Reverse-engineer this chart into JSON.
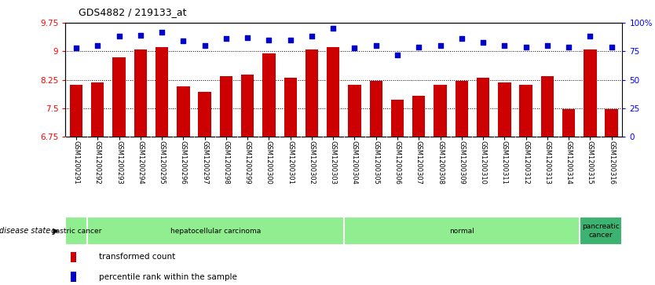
{
  "title": "GDS4882 / 219133_at",
  "samples": [
    "GSM1200291",
    "GSM1200292",
    "GSM1200293",
    "GSM1200294",
    "GSM1200295",
    "GSM1200296",
    "GSM1200297",
    "GSM1200298",
    "GSM1200299",
    "GSM1200300",
    "GSM1200301",
    "GSM1200302",
    "GSM1200303",
    "GSM1200304",
    "GSM1200305",
    "GSM1200306",
    "GSM1200307",
    "GSM1200308",
    "GSM1200309",
    "GSM1200310",
    "GSM1200311",
    "GSM1200312",
    "GSM1200313",
    "GSM1200314",
    "GSM1200315",
    "GSM1200316"
  ],
  "transformed_count": [
    8.12,
    8.18,
    8.85,
    9.05,
    9.12,
    8.08,
    7.93,
    8.35,
    8.38,
    8.95,
    8.3,
    9.05,
    9.12,
    8.12,
    8.22,
    7.72,
    7.82,
    8.12,
    8.22,
    8.3,
    8.18,
    8.12,
    8.35,
    7.48,
    9.05,
    7.48
  ],
  "percentile_rank": [
    78,
    80,
    88,
    89,
    92,
    84,
    80,
    86,
    87,
    85,
    85,
    88,
    95,
    78,
    80,
    72,
    79,
    80,
    86,
    83,
    80,
    79,
    80,
    79,
    88,
    79
  ],
  "ylim_left": [
    6.75,
    9.75
  ],
  "ylim_right": [
    0,
    100
  ],
  "yticks_left": [
    6.75,
    7.5,
    8.25,
    9.0,
    9.75
  ],
  "yticks_right": [
    0,
    25,
    50,
    75,
    100
  ],
  "ytick_labels_left": [
    "6.75",
    "7.5",
    "8.25",
    "9",
    "9.75"
  ],
  "ytick_labels_right": [
    "0",
    "25",
    "50",
    "75",
    "100%"
  ],
  "bar_color": "#CC0000",
  "dot_color": "#0000CC",
  "grid_lines": [
    7.5,
    8.25,
    9.0
  ],
  "disease_groups": [
    {
      "label": "gastric cancer",
      "start": 0,
      "end": 2,
      "color": "#90EE90"
    },
    {
      "label": "hepatocellular carcinoma",
      "start": 2,
      "end": 13,
      "color": "#90EE90"
    },
    {
      "label": "normal",
      "start": 13,
      "end": 24,
      "color": "#90EE90"
    },
    {
      "label": "pancreatic\ncancer",
      "start": 24,
      "end": 26,
      "color": "#3CB371"
    }
  ],
  "disease_state_label": "disease state",
  "legend_items": [
    {
      "label": "transformed count",
      "color": "#CC0000"
    },
    {
      "label": "percentile rank within the sample",
      "color": "#0000CC"
    }
  ],
  "bg_color": "#D3D3D3",
  "plot_bg": "#FFFFFF"
}
